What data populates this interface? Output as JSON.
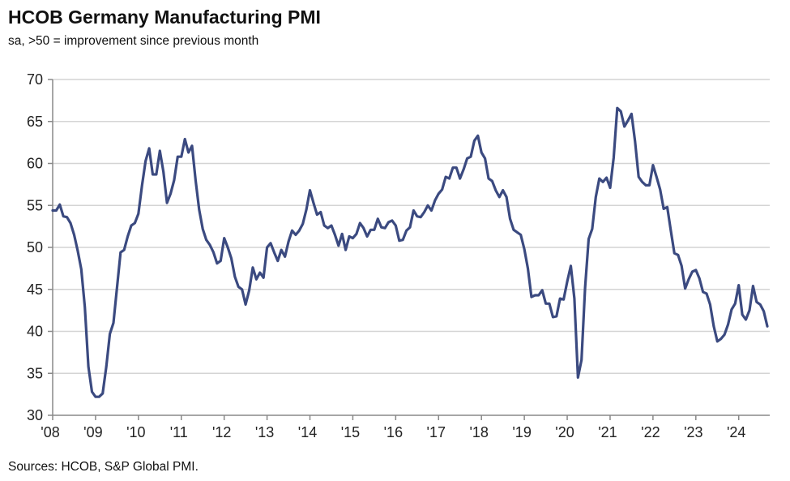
{
  "chart_data": {
    "type": "line",
    "title": "HCOB Germany Manufacturing PMI",
    "subtitle": "sa, >50 = improvement since previous month",
    "source": "Sources: HCOB, S&P Global PMI.",
    "xlabel": "",
    "ylabel": "",
    "ylim": [
      30,
      70
    ],
    "yticks": [
      "30",
      "35",
      "40",
      "45",
      "50",
      "55",
      "60",
      "65",
      "70"
    ],
    "xticks": [
      "'08",
      "'09",
      "'10",
      "'11",
      "'12",
      "'13",
      "'14",
      "'15",
      "'16",
      "'17",
      "'18",
      "'19",
      "'20",
      "'21",
      "'22",
      "'23",
      "'24"
    ],
    "xrange": [
      "2008-01",
      "2024-09"
    ],
    "frequency": "monthly",
    "grid": true,
    "legend": "none",
    "line_color": "#3b4a80",
    "series": [
      {
        "values": [
          54.4,
          54.4,
          55.1,
          53.7,
          53.6,
          52.9,
          51.5,
          49.6,
          47.4,
          42.9,
          35.8,
          32.8,
          32.2,
          32.2,
          32.6,
          35.8,
          39.7,
          41.0,
          45.2,
          49.4,
          49.7,
          51.3,
          52.6,
          52.9,
          54.0,
          57.4,
          60.3,
          61.8,
          58.7,
          58.7,
          61.5,
          59.0,
          55.3,
          56.4,
          58.0,
          60.8,
          60.8,
          62.9,
          61.3,
          62.1,
          58.0,
          54.5,
          52.2,
          50.9,
          50.3,
          49.4,
          48.1,
          48.4,
          51.1,
          50.0,
          48.7,
          46.5,
          45.3,
          45.0,
          43.2,
          44.9,
          47.6,
          46.2,
          47.0,
          46.4,
          50.0,
          50.5,
          49.4,
          48.4,
          49.7,
          48.9,
          50.7,
          52.0,
          51.5,
          52.0,
          52.8,
          54.5,
          56.8,
          55.3,
          53.9,
          54.2,
          52.6,
          52.3,
          52.6,
          51.5,
          50.2,
          51.6,
          49.7,
          51.3,
          51.1,
          51.6,
          52.9,
          52.3,
          51.3,
          52.1,
          52.1,
          53.4,
          52.4,
          52.3,
          53.0,
          53.2,
          52.6,
          50.8,
          50.9,
          52.0,
          52.4,
          54.4,
          53.7,
          53.6,
          54.2,
          55.0,
          54.4,
          55.6,
          56.4,
          56.9,
          58.4,
          58.2,
          59.5,
          59.5,
          58.2,
          59.3,
          60.6,
          60.8,
          62.7,
          63.3,
          61.3,
          60.6,
          58.2,
          57.9,
          56.8,
          56.0,
          56.8,
          56.0,
          53.4,
          52.1,
          51.8,
          51.5,
          49.8,
          47.5,
          44.1,
          44.3,
          44.3,
          44.9,
          43.3,
          43.3,
          41.7,
          41.8,
          43.9,
          43.8,
          45.9,
          47.8,
          43.9,
          34.5,
          36.6,
          45.2,
          51.0,
          52.2,
          56.0,
          58.2,
          57.8,
          58.3,
          57.1,
          60.7,
          66.6,
          66.2,
          64.4,
          65.1,
          65.9,
          62.6,
          58.4,
          57.8,
          57.4,
          57.4,
          59.8,
          58.4,
          56.9,
          54.6,
          54.8,
          52.0,
          49.3,
          49.1,
          47.8,
          45.1,
          46.2,
          47.1,
          47.3,
          46.3,
          44.7,
          44.5,
          43.2,
          40.6,
          38.8,
          39.1,
          39.6,
          40.8,
          42.6,
          43.3,
          45.5,
          42.0,
          41.4,
          42.5,
          45.4,
          43.5,
          43.2,
          42.4,
          40.6
        ]
      }
    ]
  }
}
